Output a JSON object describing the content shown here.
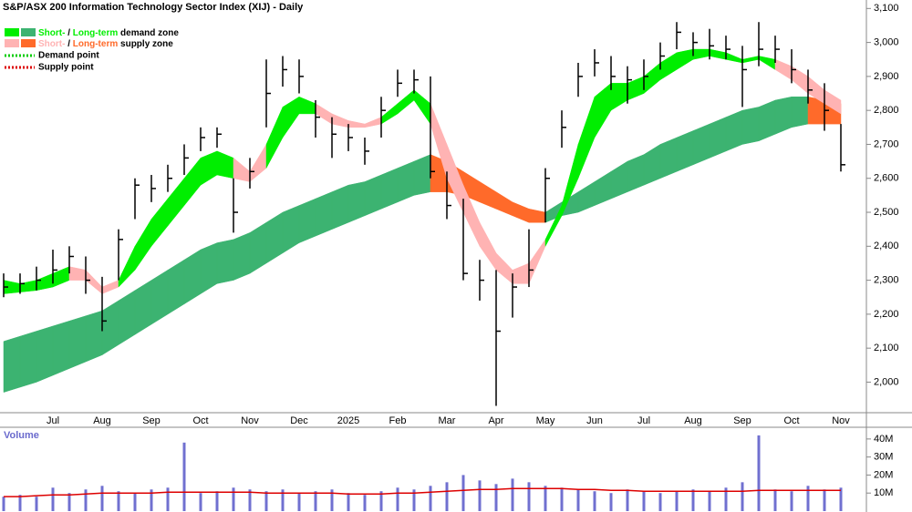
{
  "chart_data": {
    "type": "ohlc",
    "title": "S&P/ASX 200 Information Technology Sector Index (XIJ) - Daily",
    "legend": {
      "demand": {
        "short": "Short-",
        "sep": "/",
        "long": "Long-term",
        "rest": "demand zone"
      },
      "supply": {
        "short": "Short-",
        "sep": "/",
        "long": "Long-term",
        "rest": "supply zone"
      },
      "demand_point": {
        "label": "Demand point",
        "color": "#00cc00"
      },
      "supply_point": {
        "label": "Supply point",
        "color": "#dd0000"
      }
    },
    "categories": [
      null,
      null,
      null,
      "Jul",
      null,
      null,
      "Aug",
      null,
      null,
      "Sep",
      null,
      null,
      "Oct",
      null,
      null,
      "Nov",
      null,
      null,
      "Dec",
      null,
      null,
      "2025",
      null,
      null,
      "Feb",
      null,
      null,
      "Mar",
      null,
      null,
      "Apr",
      null,
      null,
      "May",
      null,
      null,
      "Jun",
      null,
      null,
      "Jul",
      null,
      null,
      "Aug",
      null,
      null,
      "Sep",
      null,
      null,
      "Oct",
      null,
      null,
      "Nov"
    ],
    "high": [
      2320,
      2320,
      2340,
      2390,
      2400,
      2370,
      2310,
      2450,
      2600,
      2610,
      2640,
      2700,
      2750,
      2750,
      2600,
      2660,
      2950,
      2960,
      2950,
      2830,
      2780,
      2760,
      2720,
      2840,
      2920,
      2920,
      2900,
      2620,
      2540,
      2360,
      2330,
      2320,
      2450,
      2630,
      2800,
      2940,
      2980,
      2960,
      2930,
      2950,
      3000,
      3060,
      3030,
      3040,
      3020,
      2990,
      3060,
      3020,
      2980,
      2920,
      2880,
      2760
    ],
    "low": [
      2250,
      2260,
      2270,
      2290,
      2320,
      2260,
      2150,
      2300,
      2480,
      2530,
      2560,
      2610,
      2680,
      2690,
      2440,
      2570,
      2750,
      2870,
      2850,
      2720,
      2660,
      2680,
      2640,
      2720,
      2840,
      2850,
      2600,
      2480,
      2300,
      2240,
      1930,
      2190,
      2280,
      2470,
      2690,
      2840,
      2900,
      2860,
      2820,
      2860,
      2920,
      2980,
      2960,
      2950,
      2950,
      2810,
      2930,
      2940,
      2880,
      2820,
      2740,
      2620
    ],
    "close": [
      2280,
      2290,
      2300,
      2330,
      2370,
      2300,
      2180,
      2420,
      2580,
      2570,
      2600,
      2660,
      2720,
      2730,
      2500,
      2620,
      2850,
      2920,
      2900,
      2780,
      2730,
      2720,
      2680,
      2800,
      2880,
      2890,
      2620,
      2520,
      2320,
      2300,
      2150,
      2280,
      2330,
      2600,
      2750,
      2900,
      2940,
      2900,
      2890,
      2900,
      2960,
      3030,
      3000,
      2990,
      2980,
      2920,
      2980,
      2980,
      2920,
      2860,
      2800,
      2640
    ],
    "bar_color": "#000000",
    "zones": [
      {
        "colors": {
          "demand": "#3cb371",
          "supply": "#ff6a2a"
        },
        "upper": [
          2120,
          2135,
          2150,
          2165,
          2180,
          2195,
          2210,
          2240,
          2270,
          2300,
          2330,
          2360,
          2390,
          2410,
          2420,
          2440,
          2470,
          2500,
          2520,
          2540,
          2560,
          2580,
          2590,
          2610,
          2630,
          2650,
          2670,
          2650,
          2620,
          2590,
          2560,
          2530,
          2510,
          2500,
          2530,
          2560,
          2590,
          2620,
          2650,
          2670,
          2700,
          2720,
          2740,
          2760,
          2780,
          2800,
          2810,
          2830,
          2840,
          2840,
          2830,
          2820
        ],
        "lower": [
          1970,
          1985,
          2000,
          2020,
          2040,
          2060,
          2080,
          2110,
          2140,
          2170,
          2200,
          2230,
          2260,
          2290,
          2300,
          2320,
          2350,
          2380,
          2410,
          2430,
          2450,
          2470,
          2490,
          2510,
          2530,
          2550,
          2560,
          2560,
          2550,
          2530,
          2510,
          2490,
          2470,
          2470,
          2490,
          2500,
          2520,
          2540,
          2560,
          2580,
          2600,
          2620,
          2640,
          2660,
          2680,
          2700,
          2710,
          2730,
          2750,
          2760,
          2760,
          2760
        ],
        "state": [
          "demand",
          "demand",
          "demand",
          "demand",
          "demand",
          "demand",
          "demand",
          "demand",
          "demand",
          "demand",
          "demand",
          "demand",
          "demand",
          "demand",
          "demand",
          "demand",
          "demand",
          "demand",
          "demand",
          "demand",
          "demand",
          "demand",
          "demand",
          "demand",
          "demand",
          "demand",
          "supply",
          "supply",
          "supply",
          "supply",
          "supply",
          "supply",
          "supply",
          "demand",
          "demand",
          "demand",
          "demand",
          "demand",
          "demand",
          "demand",
          "demand",
          "demand",
          "demand",
          "demand",
          "demand",
          "demand",
          "demand",
          "demand",
          "demand",
          "supply",
          "supply",
          "supply"
        ]
      },
      {
        "colors": {
          "demand": "#00ee00",
          "supply": "#ffb3b3"
        },
        "upper": [
          2300,
          2290,
          2300,
          2320,
          2340,
          2330,
          2280,
          2300,
          2400,
          2480,
          2540,
          2600,
          2660,
          2680,
          2660,
          2620,
          2700,
          2810,
          2840,
          2820,
          2790,
          2770,
          2760,
          2780,
          2820,
          2860,
          2820,
          2700,
          2580,
          2470,
          2380,
          2330,
          2350,
          2420,
          2520,
          2700,
          2840,
          2880,
          2880,
          2900,
          2940,
          2970,
          2980,
          2980,
          2970,
          2950,
          2960,
          2950,
          2930,
          2900,
          2860,
          2830
        ],
        "lower": [
          2260,
          2265,
          2270,
          2280,
          2300,
          2300,
          2260,
          2280,
          2330,
          2400,
          2460,
          2520,
          2580,
          2610,
          2600,
          2590,
          2630,
          2720,
          2790,
          2790,
          2760,
          2750,
          2750,
          2760,
          2790,
          2830,
          2760,
          2600,
          2500,
          2400,
          2330,
          2290,
          2290,
          2400,
          2490,
          2600,
          2720,
          2800,
          2830,
          2850,
          2890,
          2920,
          2950,
          2960,
          2950,
          2940,
          2950,
          2920,
          2890,
          2850,
          2820,
          2790
        ],
        "state": [
          "demand",
          "demand",
          "demand",
          "demand",
          "supply",
          "supply",
          "supply",
          "demand",
          "demand",
          "demand",
          "demand",
          "demand",
          "demand",
          "demand",
          "supply",
          "supply",
          "demand",
          "demand",
          "demand",
          "supply",
          "supply",
          "supply",
          "supply",
          "demand",
          "demand",
          "demand",
          "supply",
          "supply",
          "supply",
          "supply",
          "supply",
          "supply",
          "supply",
          "demand",
          "demand",
          "demand",
          "demand",
          "demand",
          "demand",
          "demand",
          "demand",
          "demand",
          "demand",
          "demand",
          "demand",
          "demand",
          "demand",
          "supply",
          "supply",
          "supply",
          "supply",
          "supply"
        ]
      }
    ],
    "ylim": [
      1910,
      3125
    ],
    "yticks": [
      {
        "value": 2000,
        "label": "2,000"
      },
      {
        "value": 2100,
        "label": "2,100"
      },
      {
        "value": 2200,
        "label": "2,200"
      },
      {
        "value": 2300,
        "label": "2,300"
      },
      {
        "value": 2400,
        "label": "2,400"
      },
      {
        "value": 2500,
        "label": "2,500"
      },
      {
        "value": 2600,
        "label": "2,600"
      },
      {
        "value": 2700,
        "label": "2,700"
      },
      {
        "value": 2800,
        "label": "2,800"
      },
      {
        "value": 2900,
        "label": "2,900"
      },
      {
        "value": 3000,
        "label": "3,000"
      },
      {
        "value": 3100,
        "label": "3,100"
      }
    ],
    "grid": false,
    "volume": {
      "title": "Volume",
      "values": [
        8,
        9,
        8,
        13,
        10,
        12,
        14,
        11,
        10,
        12,
        13,
        38,
        10,
        11,
        13,
        12,
        11,
        12,
        10,
        11,
        12,
        10,
        9,
        11,
        13,
        12,
        14,
        16,
        20,
        17,
        15,
        18,
        16,
        14,
        13,
        12,
        11,
        10,
        12,
        11,
        10,
        11,
        12,
        11,
        13,
        16,
        42,
        12,
        11,
        14,
        12,
        13
      ],
      "average": [
        8,
        8,
        8.5,
        9,
        9,
        9.5,
        10,
        10,
        10,
        10,
        10.5,
        10.5,
        10.5,
        10.5,
        10.5,
        10.5,
        10,
        10,
        10,
        10,
        10,
        9.5,
        9.5,
        9.5,
        10,
        10,
        10.5,
        11,
        11.5,
        12,
        12,
        12.5,
        12.5,
        12.5,
        12.5,
        12,
        12,
        11.5,
        11.5,
        11,
        11,
        11,
        11,
        11,
        11,
        11,
        11.5,
        11.5,
        11.5,
        11.5,
        11.5,
        11.5
      ],
      "color": "#7070d0",
      "average_color": "#dd0000",
      "ylim": [
        0,
        47
      ],
      "yticks": [
        {
          "value": 10,
          "label": "10M"
        },
        {
          "value": 20,
          "label": "20M"
        },
        {
          "value": 30,
          "label": "30M"
        },
        {
          "value": 40,
          "label": "40M"
        }
      ]
    }
  }
}
